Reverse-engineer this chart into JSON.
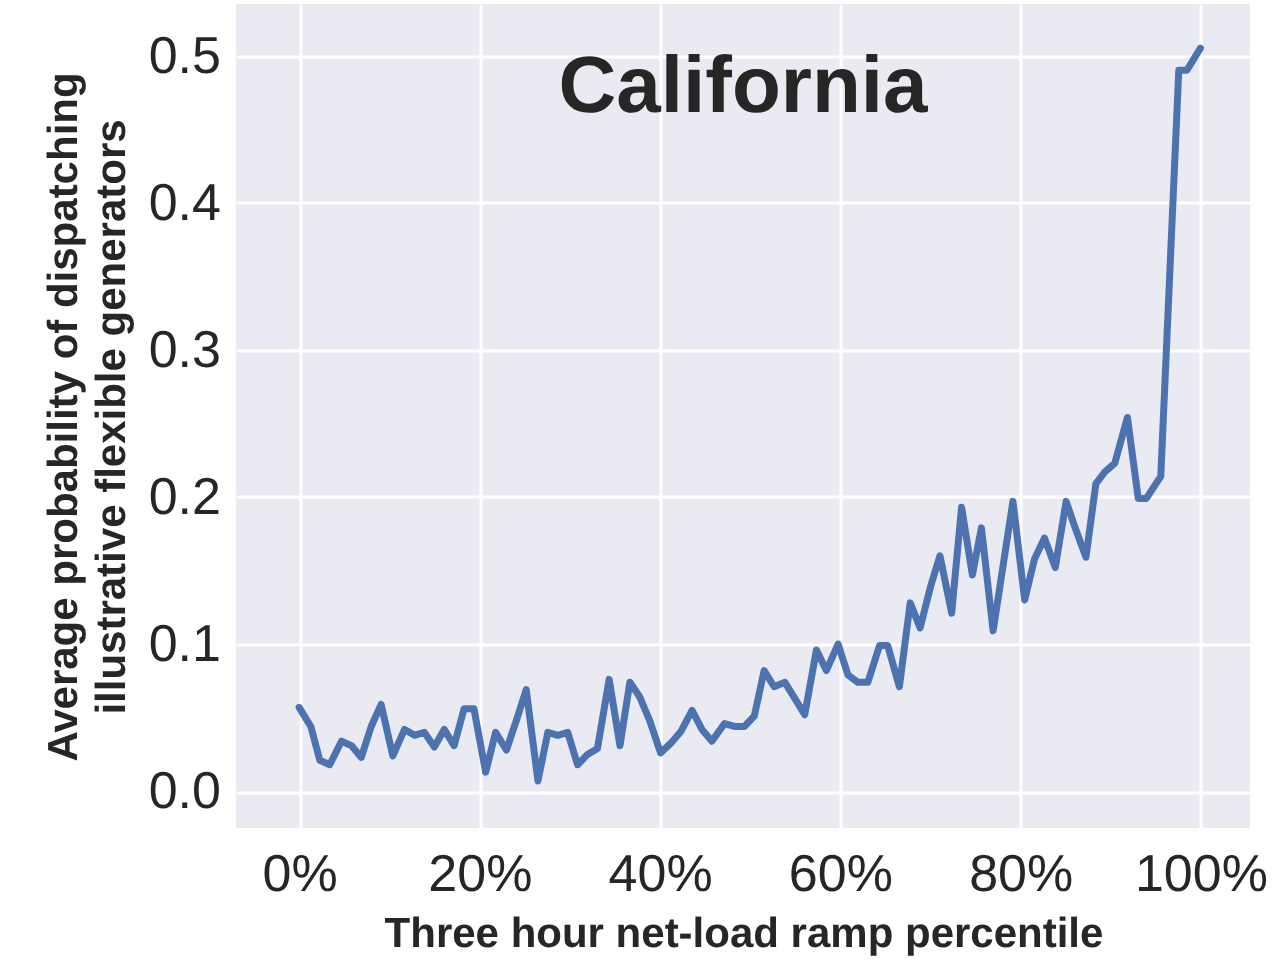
{
  "chart_data": {
    "type": "line",
    "title": "California",
    "xlabel": "Three hour net-load ramp percentile",
    "ylabel": "Average probability of dispatching\nillustrative flexible generators",
    "x": [
      0,
      1.3,
      2.3,
      3.4,
      4.7,
      5.8,
      6.9,
      8.0,
      9.1,
      10.4,
      11.7,
      12.8,
      13.9,
      15.0,
      16.1,
      17.2,
      18.3,
      19.4,
      20.7,
      21.8,
      23.0,
      24.1,
      25.2,
      26.5,
      27.6,
      28.7,
      29.8,
      30.9,
      32.0,
      33.1,
      34.4,
      35.6,
      36.7,
      37.8,
      38.9,
      40.1,
      41.3,
      42.4,
      43.6,
      44.7,
      45.8,
      47.2,
      48.3,
      49.4,
      50.5,
      51.6,
      52.7,
      53.9,
      56.1,
      57.4,
      58.5,
      59.8,
      60.9,
      62.0,
      63.1,
      64.4,
      65.3,
      66.6,
      67.8,
      68.9,
      70.1,
      71.1,
      72.4,
      73.5,
      74.7,
      75.7,
      77.0,
      79.2,
      80.5,
      81.6,
      82.7,
      83.9,
      85.1,
      86.1,
      87.3,
      88.4,
      89.4,
      90.5,
      91.9,
      93.1,
      94.0,
      95.6,
      97.6,
      98.5,
      100
    ],
    "series": [
      {
        "color": "#4c72b0",
        "values": [
          0.057,
          0.044,
          0.021,
          0.018,
          0.034,
          0.031,
          0.023,
          0.044,
          0.059,
          0.024,
          0.042,
          0.038,
          0.04,
          0.03,
          0.042,
          0.031,
          0.056,
          0.056,
          0.013,
          0.04,
          0.028,
          0.048,
          0.069,
          0.007,
          0.04,
          0.038,
          0.04,
          0.018,
          0.025,
          0.029,
          0.076,
          0.031,
          0.074,
          0.064,
          0.048,
          0.026,
          0.033,
          0.041,
          0.055,
          0.042,
          0.034,
          0.046,
          0.044,
          0.044,
          0.051,
          0.082,
          0.071,
          0.074,
          0.052,
          0.096,
          0.082,
          0.1,
          0.079,
          0.074,
          0.074,
          0.099,
          0.099,
          0.071,
          0.128,
          0.111,
          0.14,
          0.16,
          0.121,
          0.193,
          0.147,
          0.179,
          0.109,
          0.197,
          0.13,
          0.158,
          0.172,
          0.152,
          0.197,
          0.179,
          0.159,
          0.209,
          0.217,
          0.223,
          0.254,
          0.199,
          0.199,
          0.214,
          0.49,
          0.49,
          0.505
        ]
      }
    ],
    "xlim": [
      -7,
      105.5
    ],
    "ylim": [
      -0.025,
      0.535
    ],
    "xticks": [
      {
        "value": 0,
        "label": "0%"
      },
      {
        "value": 20,
        "label": "20%"
      },
      {
        "value": 40,
        "label": "40%"
      },
      {
        "value": 60,
        "label": "60%"
      },
      {
        "value": 80,
        "label": "80%"
      },
      {
        "value": 100,
        "label": "100%"
      }
    ],
    "yticks": [
      {
        "value": 0,
        "label": "0.0"
      },
      {
        "value": 0.1,
        "label": "0.1"
      },
      {
        "value": 0.2,
        "label": "0.2"
      },
      {
        "value": 0.3,
        "label": "0.3"
      },
      {
        "value": 0.4,
        "label": "0.4"
      },
      {
        "value": 0.5,
        "label": "0.5"
      }
    ],
    "grid": true,
    "marker": "none",
    "line_style": "solid"
  }
}
